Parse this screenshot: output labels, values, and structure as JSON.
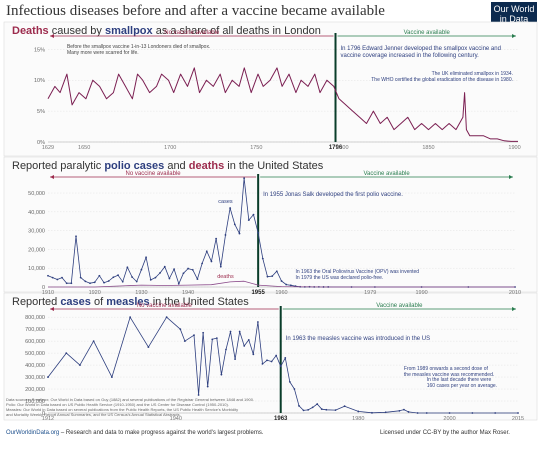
{
  "header": {
    "title": "Infectious diseases before and after a vaccine became available",
    "logo_line1": "Our World",
    "logo_line2": "in Data"
  },
  "colors": {
    "pre": "#9c2b4d",
    "post": "#2a7d4f",
    "series_main": "#7b1f52",
    "series_blue": "#2e3f7f",
    "series_deaths": "#8a4a8a",
    "logo_bg": "#0c2a4e"
  },
  "panels": {
    "smallpox": {
      "title_parts": [
        {
          "text": "Deaths",
          "bold": true,
          "color": "#9c2b4d"
        },
        {
          "text": " caused by ",
          "bold": false,
          "color": "#333333"
        },
        {
          "text": "smallpox",
          "bold": true,
          "color": "#2e3f7f"
        },
        {
          "text": " as a share of all deaths in London",
          "bold": false,
          "color": "#333333"
        }
      ],
      "pre_label": "No vaccine available",
      "post_label": "Vaccine available",
      "note_pre": "Before the smallpox vaccine 1-in-13 Londoners died of smallpox.\nMany more were scarred for life.",
      "note_post": "In 1796 Edward Jenner developed the smallpox vaccine and\nvaccine coverage increased in the following century.",
      "note_late": "The UK eliminated smallpox in 1934.\nThe WHO certified the global eradication of the disease in 1980.",
      "vaccine_year_label": "1796"
    },
    "polio": {
      "title_parts": [
        {
          "text": "Reported paralytic ",
          "bold": false,
          "color": "#333333"
        },
        {
          "text": "polio",
          "bold": true,
          "color": "#2e3f7f"
        },
        {
          "text": " ",
          "bold": false,
          "color": "#333333"
        },
        {
          "text": "cases",
          "bold": true,
          "color": "#2e3f7f"
        },
        {
          "text": " and ",
          "bold": false,
          "color": "#333333"
        },
        {
          "text": "deaths",
          "bold": true,
          "color": "#9c2b4d"
        },
        {
          "text": " in the United States",
          "bold": false,
          "color": "#333333"
        }
      ],
      "pre_label": "No vaccine available",
      "post_label": "Vaccine available",
      "note_post": "In 1955 Jonas Salk developed the first polio vaccine.",
      "note_late": "In 1963 the Oral Poliovirus Vaccine (OPV) was invented\nIn 1979 the US was declared polio-free.",
      "cases_label": "cases",
      "deaths_label": "deaths",
      "vaccine_year_label": "1955"
    },
    "measles": {
      "title_parts": [
        {
          "text": "Reported ",
          "bold": false,
          "color": "#333333"
        },
        {
          "text": "cases",
          "bold": true,
          "color": "#2e3f7f"
        },
        {
          "text": " of ",
          "bold": false,
          "color": "#333333"
        },
        {
          "text": "measles",
          "bold": true,
          "color": "#2e3f7f"
        },
        {
          "text": " in the United States",
          "bold": false,
          "color": "#333333"
        }
      ],
      "pre_label": "No vaccine available",
      "post_label": "Vaccine available",
      "note_post": "In 1963 the measles vaccine was introduced in the US",
      "note_late1": "From 1989 onwards a second dose of\nthe measles vaccine was recommended.",
      "note_late2": "In the last decade there were\n160 cases per year on average.",
      "vaccine_year_label": "1963"
    }
  },
  "chart_data": [
    {
      "type": "line",
      "title": "Deaths caused by smallpox as a share of all deaths in London",
      "xlim": [
        1629,
        1902
      ],
      "ylim": [
        0,
        17
      ],
      "yticks": [
        0,
        5,
        10,
        15
      ],
      "ytick_labels": [
        "0%",
        "5%",
        "10%",
        "15%"
      ],
      "xticks": [
        1629,
        1650,
        1700,
        1750,
        1796,
        1800,
        1850,
        1900
      ],
      "xtick_labels": [
        "1629",
        "1650",
        "1700",
        "1750",
        "1796",
        "1800",
        "1850",
        "1900"
      ],
      "vaccine_year": 1796,
      "series": [
        {
          "x": [
            1629,
            1633,
            1636,
            1640,
            1643,
            1647,
            1651,
            1655,
            1659,
            1663,
            1667,
            1670,
            1674,
            1678,
            1681,
            1684,
            1688,
            1692,
            1695,
            1699,
            1702,
            1706,
            1710,
            1714,
            1717,
            1721,
            1725,
            1729,
            1732,
            1736,
            1740,
            1743,
            1747,
            1751,
            1754,
            1758,
            1762,
            1765,
            1769,
            1773,
            1776,
            1780,
            1784,
            1787,
            1791,
            1795,
            1798,
            1802,
            1806,
            1810,
            1814,
            1818,
            1822,
            1826,
            1830,
            1834,
            1838,
            1842,
            1846,
            1850,
            1854,
            1858,
            1862,
            1866,
            1870,
            1871,
            1872,
            1874,
            1878,
            1882,
            1886,
            1890,
            1894,
            1898,
            1902
          ],
          "values": [
            7,
            9,
            8,
            11,
            6,
            8,
            7,
            10,
            9,
            7,
            8,
            11,
            9,
            7,
            11,
            10,
            8,
            9,
            11,
            10,
            8,
            11,
            9,
            12,
            8,
            10,
            9,
            11,
            8,
            10,
            9,
            12,
            8,
            11,
            9,
            10,
            12,
            9,
            11,
            8,
            10,
            9,
            11,
            8,
            10,
            9,
            7,
            6,
            5,
            4,
            3,
            5,
            3,
            4,
            2,
            3,
            4,
            2,
            3,
            2,
            3,
            2,
            3,
            2,
            4,
            8,
            2,
            1,
            1,
            1,
            0.5,
            0.5,
            0.2,
            0.1,
            0.1
          ]
        }
      ]
    },
    {
      "type": "line",
      "title": "Reported paralytic polio cases and deaths in the United States",
      "xlim": [
        1910,
        2010
      ],
      "ylim": [
        0,
        58000
      ],
      "yticks": [
        0,
        10000,
        20000,
        30000,
        40000,
        50000
      ],
      "ytick_labels": [
        "0",
        "10,000",
        "20,000",
        "30,000",
        "40,000",
        "50,000"
      ],
      "xticks": [
        1910,
        1920,
        1930,
        1940,
        1955,
        1960,
        1979,
        1990,
        2010
      ],
      "xtick_labels": [
        "1910",
        "1920",
        "1930",
        "1940",
        "1955",
        "1960",
        "1979",
        "1990",
        "2010"
      ],
      "vaccine_year": 1955,
      "series": [
        {
          "name": "cases",
          "x": [
            1910,
            1911,
            1912,
            1913,
            1914,
            1915,
            1916,
            1917,
            1918,
            1919,
            1920,
            1921,
            1922,
            1923,
            1924,
            1925,
            1926,
            1927,
            1928,
            1929,
            1930,
            1931,
            1932,
            1933,
            1934,
            1935,
            1936,
            1937,
            1938,
            1939,
            1940,
            1941,
            1942,
            1943,
            1944,
            1945,
            1946,
            1947,
            1948,
            1949,
            1950,
            1951,
            1952,
            1953,
            1954,
            1955,
            1956,
            1957,
            1958,
            1959,
            1960,
            1961,
            1962,
            1963,
            1964,
            1965,
            1966,
            1967,
            1968,
            1969,
            1970,
            1975,
            1980,
            1990,
            2000,
            2010
          ],
          "values": [
            6000,
            5000,
            4000,
            5000,
            2000,
            2000,
            27000,
            5000,
            3000,
            2000,
            2500,
            6000,
            2300,
            3200,
            5200,
            6300,
            2800,
            10500,
            5300,
            2900,
            9200,
            15800,
            3800,
            5000,
            7500,
            10800,
            4500,
            9500,
            1700,
            7300,
            9800,
            9100,
            4200,
            12500,
            19000,
            13600,
            25700,
            10800,
            27700,
            42000,
            33300,
            28400,
            57900,
            35600,
            38500,
            28900,
            15100,
            5500,
            5800,
            8400,
            3200,
            1300,
            900,
            450,
            120,
            70,
            110,
            40,
            50,
            20,
            30,
            10,
            10,
            5,
            0,
            0
          ]
        },
        {
          "name": "deaths",
          "x": [
            1910,
            1920,
            1930,
            1935,
            1940,
            1945,
            1949,
            1952,
            1955,
            1960,
            1970,
            2010
          ],
          "values": [
            0,
            0,
            1000,
            800,
            1000,
            1200,
            2700,
            3100,
            1000,
            200,
            0,
            0
          ]
        }
      ]
    },
    {
      "type": "line",
      "title": "Reported cases of measles in the United States",
      "xlim": [
        1912,
        2015
      ],
      "ylim": [
        0,
        860000
      ],
      "yticks": [
        0,
        100000,
        200000,
        300000,
        400000,
        500000,
        600000,
        700000,
        800000
      ],
      "ytick_labels": [
        "0",
        "100,000",
        "200,000",
        "300,000",
        "400,000",
        "500,000",
        "600,000",
        "700,000",
        "800,000"
      ],
      "xticks": [
        1912,
        1940,
        1963,
        1980,
        2000,
        2015
      ],
      "xtick_labels": [
        "1912",
        "1940",
        "1963",
        "1980",
        "2000",
        "2015"
      ],
      "vaccine_year": 1963,
      "series": [
        {
          "x": [
            1912,
            1916,
            1919,
            1922,
            1926,
            1930,
            1934,
            1938,
            1941,
            1942,
            1944,
            1945,
            1946,
            1947,
            1948,
            1949,
            1950,
            1951,
            1952,
            1953,
            1954,
            1955,
            1956,
            1957,
            1958,
            1959,
            1960,
            1961,
            1962,
            1963,
            1964,
            1965,
            1966,
            1967,
            1968,
            1969,
            1970,
            1971,
            1972,
            1973,
            1975,
            1977,
            1980,
            1983,
            1986,
            1989,
            1990,
            1991,
            1993,
            1995,
            2000,
            2005,
            2010,
            2015
          ],
          "values": [
            300000,
            500000,
            400000,
            600000,
            300000,
            800000,
            550000,
            800000,
            700000,
            600000,
            650000,
            150000,
            670000,
            220000,
            615000,
            625000,
            320000,
            530000,
            680000,
            450000,
            680000,
            560000,
            610000,
            490000,
            760000,
            410000,
            440000,
            430000,
            480000,
            390000,
            460000,
            260000,
            200000,
            60000,
            22000,
            26000,
            47000,
            75000,
            32000,
            27000,
            24000,
            57000,
            13000,
            1500,
            6000,
            18000,
            28000,
            9000,
            300,
            300,
            90,
            60,
            60,
            180
          ]
        }
      ]
    }
  ],
  "footer": {
    "sources_line1": "Data sources: Smallpox: Our World in Data based on Guy (1882) and several publications of the Registrar General between 1848 and 1900.",
    "sources_line2": "Polio: Our World in Data based on US Public Health Service (1910-1950) and the US Center for Disease Control (1950-2010).",
    "sources_line3": "Measles: Our World in Data based on several publications from the Public Health Reports, the US Public Health Service's Morbidity",
    "sources_line4": "and Mortality Weekly Report Annual Summaries, and the US Census's Annual Statistical Abstracts.",
    "link": "OurWorldinData.org",
    "tagline": " – Research and data to make progress against the world's largest problems.",
    "license": "Licensed under CC-BY by the author Max Roser."
  }
}
